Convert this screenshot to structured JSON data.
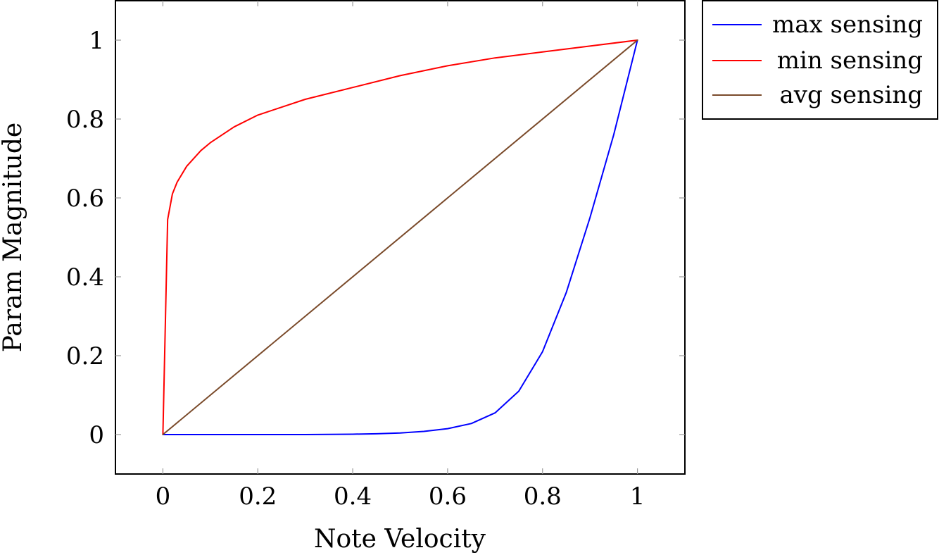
{
  "chart_data": {
    "type": "line",
    "title": "",
    "xlabel": "Note Velocity",
    "ylabel": "Param Magnitude",
    "xlim": [
      -0.1,
      1.1
    ],
    "ylim": [
      -0.1,
      1.1
    ],
    "x_ticks": [
      0,
      0.2,
      0.4,
      0.6,
      0.8,
      1
    ],
    "x_tick_labels": [
      "0",
      "0.2",
      "0.4",
      "0.6",
      "0.8",
      "1"
    ],
    "y_ticks": [
      0,
      0.2,
      0.4,
      0.6,
      0.8,
      1
    ],
    "y_tick_labels": [
      "0",
      "0.2",
      "0.4",
      "0.6",
      "0.8",
      "1"
    ],
    "grid": false,
    "legend_position": "outside-top-right",
    "series": [
      {
        "name": "max sensing",
        "color": "#0000ff",
        "x": [
          0,
          0.1,
          0.2,
          0.3,
          0.35,
          0.4,
          0.45,
          0.5,
          0.55,
          0.6,
          0.65,
          0.7,
          0.75,
          0.8,
          0.85,
          0.9,
          0.95,
          1
        ],
        "y": [
          0,
          0,
          0,
          0,
          0.0005,
          0.001,
          0.002,
          0.004,
          0.008,
          0.015,
          0.028,
          0.055,
          0.11,
          0.21,
          0.36,
          0.55,
          0.76,
          1
        ]
      },
      {
        "name": "min sensing",
        "color": "#ff0000",
        "x": [
          0,
          0.01,
          0.02,
          0.03,
          0.05,
          0.08,
          0.1,
          0.15,
          0.2,
          0.3,
          0.4,
          0.5,
          0.6,
          0.7,
          0.8,
          0.9,
          1
        ],
        "y": [
          0,
          0.545,
          0.61,
          0.64,
          0.68,
          0.72,
          0.74,
          0.78,
          0.81,
          0.85,
          0.88,
          0.91,
          0.935,
          0.955,
          0.97,
          0.985,
          1
        ]
      },
      {
        "name": "avg sensing",
        "color": "#7a4a2a",
        "x": [
          0,
          1
        ],
        "y": [
          0,
          1
        ]
      }
    ]
  }
}
